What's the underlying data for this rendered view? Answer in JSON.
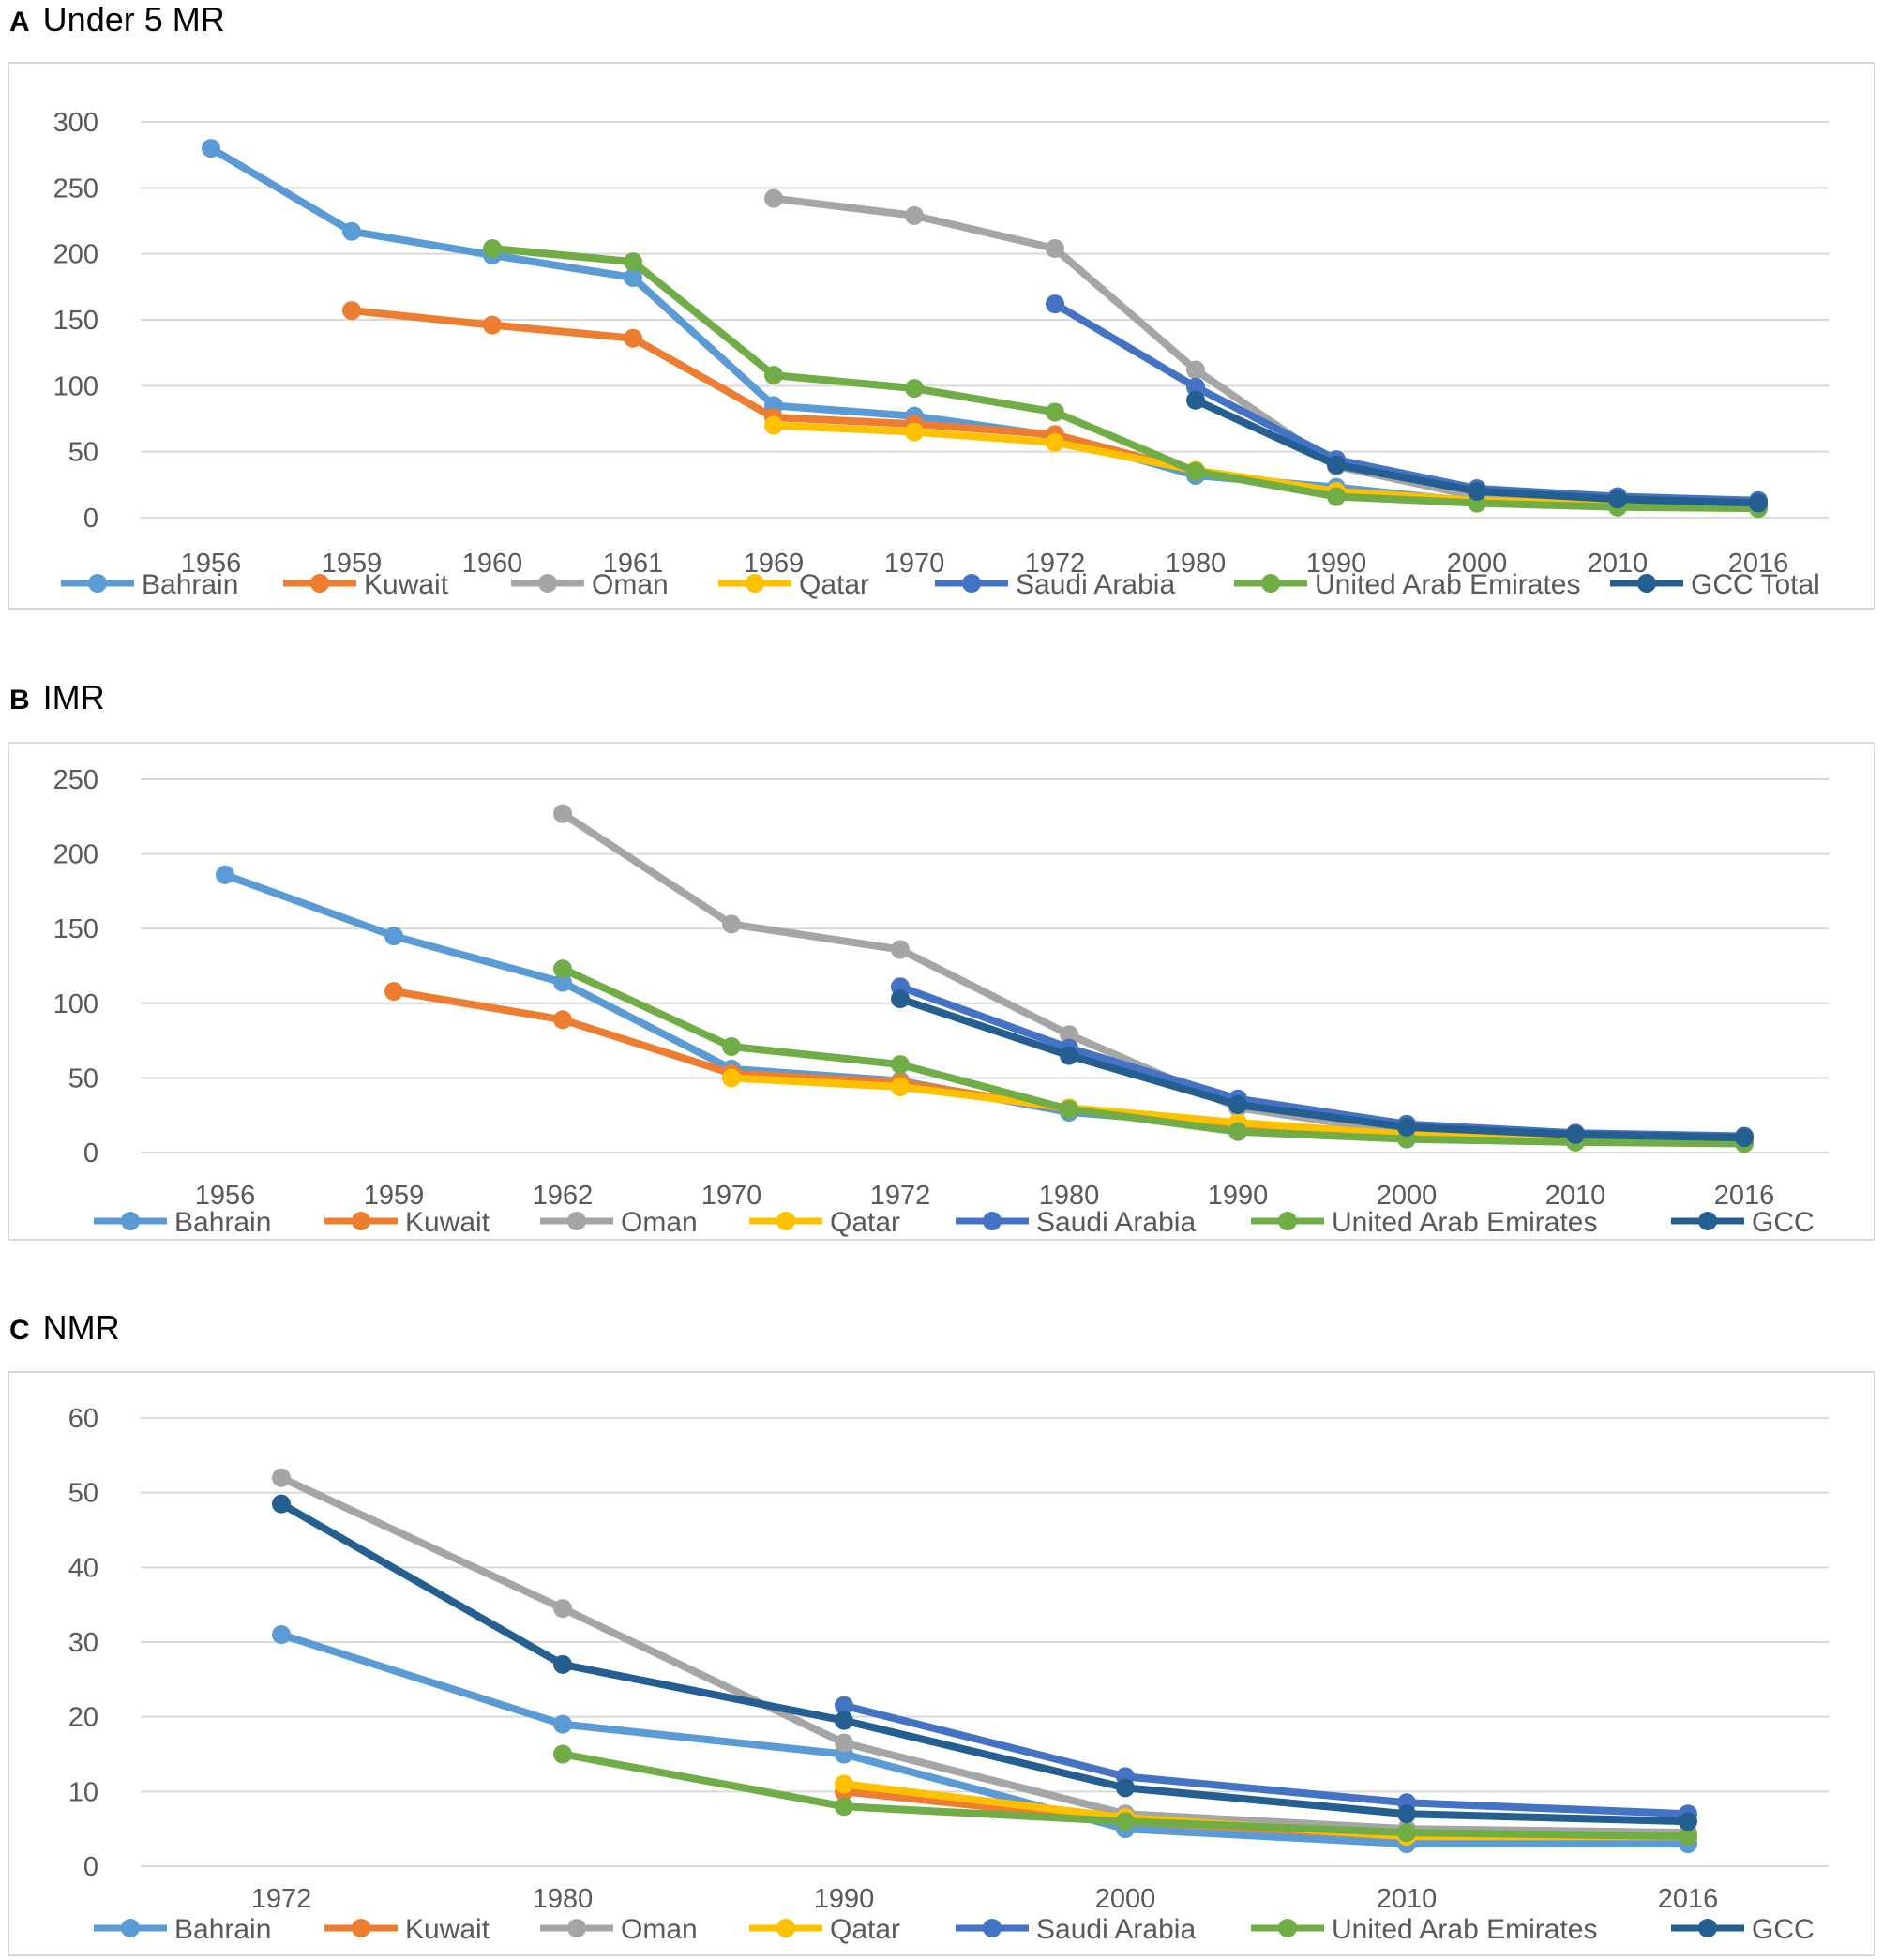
{
  "chart_data": [
    {
      "type": "line",
      "panel_letter": "A",
      "title": "Under 5 MR",
      "categories": [
        "1956",
        "1959",
        "1960",
        "1961",
        "1969",
        "1970",
        "1972",
        "1980",
        "1990",
        "2000",
        "2010",
        "2016"
      ],
      "ylim": [
        0,
        300
      ],
      "yticks": [
        0,
        50,
        100,
        150,
        200,
        250,
        300
      ],
      "grid": true,
      "legend": "bottom",
      "series": [
        {
          "name": "Bahrain",
          "color": "#5b9bd5",
          "values": [
            280,
            217,
            199,
            182,
            85,
            77,
            62,
            32,
            23,
            12,
            10,
            8
          ]
        },
        {
          "name": "Kuwait",
          "color": "#ed7d31",
          "values": [
            null,
            157,
            146,
            136,
            76,
            71,
            63,
            35,
            18,
            13,
            10,
            9
          ]
        },
        {
          "name": "Oman",
          "color": "#a5a5a5",
          "values": [
            null,
            null,
            null,
            null,
            242,
            229,
            204,
            112,
            39,
            16,
            12,
            11
          ]
        },
        {
          "name": "Qatar",
          "color": "#ffc000",
          "values": [
            null,
            null,
            null,
            null,
            70,
            65,
            57,
            36,
            20,
            13,
            10,
            9
          ]
        },
        {
          "name": "Saudi Arabia",
          "color": "#4472c4",
          "values": [
            null,
            null,
            null,
            null,
            null,
            null,
            162,
            99,
            44,
            22,
            16,
            13
          ]
        },
        {
          "name": "United Arab Emirates",
          "color": "#70ad47",
          "values": [
            null,
            null,
            204,
            194,
            108,
            98,
            80,
            35,
            16,
            11,
            8,
            7
          ]
        },
        {
          "name": "GCC Total",
          "color": "#255e91",
          "values": [
            null,
            null,
            null,
            null,
            null,
            null,
            null,
            89,
            40,
            20,
            14,
            11
          ]
        }
      ]
    },
    {
      "type": "line",
      "panel_letter": "B",
      "title": "IMR",
      "categories": [
        "1956",
        "1959",
        "1962",
        "1970",
        "1972",
        "1980",
        "1990",
        "2000",
        "2010",
        "2016"
      ],
      "ylim": [
        0,
        250
      ],
      "yticks": [
        0,
        50,
        100,
        150,
        200,
        250
      ],
      "grid": true,
      "legend": "bottom",
      "series": [
        {
          "name": "Bahrain",
          "color": "#5b9bd5",
          "values": [
            186,
            145,
            114,
            56,
            48,
            27,
            18,
            11,
            8,
            7
          ]
        },
        {
          "name": "Kuwait",
          "color": "#ed7d31",
          "values": [
            null,
            108,
            89,
            53,
            47,
            29,
            16,
            11,
            8,
            7
          ]
        },
        {
          "name": "Oman",
          "color": "#a5a5a5",
          "values": [
            null,
            null,
            227,
            153,
            136,
            79,
            30,
            13,
            10,
            9
          ]
        },
        {
          "name": "Qatar",
          "color": "#ffc000",
          "values": [
            null,
            null,
            null,
            50,
            44,
            30,
            20,
            12,
            8,
            7
          ]
        },
        {
          "name": "Saudi Arabia",
          "color": "#4472c4",
          "values": [
            null,
            null,
            null,
            null,
            111,
            70,
            36,
            19,
            13,
            11
          ]
        },
        {
          "name": "United Arab Emirates",
          "color": "#70ad47",
          "values": [
            null,
            null,
            123,
            71,
            59,
            29,
            14,
            9,
            7,
            6
          ]
        },
        {
          "name": "GCC",
          "color": "#255e91",
          "values": [
            null,
            null,
            null,
            null,
            103,
            65,
            32,
            17,
            12,
            10
          ]
        }
      ]
    },
    {
      "type": "line",
      "panel_letter": "C",
      "title": "NMR",
      "categories": [
        "1972",
        "1980",
        "1990",
        "2000",
        "2010",
        "2016"
      ],
      "ylim": [
        0,
        60
      ],
      "yticks": [
        0,
        10,
        20,
        30,
        40,
        50,
        60
      ],
      "grid": true,
      "legend": "bottom",
      "series": [
        {
          "name": "Bahrain",
          "color": "#5b9bd5",
          "values": [
            31,
            19,
            15,
            5,
            3,
            3
          ]
        },
        {
          "name": "Kuwait",
          "color": "#ed7d31",
          "values": [
            null,
            null,
            10,
            6,
            4,
            4
          ]
        },
        {
          "name": "Oman",
          "color": "#a5a5a5",
          "values": [
            52,
            34.5,
            16.5,
            7,
            5,
            4.5
          ]
        },
        {
          "name": "Qatar",
          "color": "#ffc000",
          "values": [
            null,
            null,
            11,
            6.5,
            4,
            4
          ]
        },
        {
          "name": "Saudi Arabia",
          "color": "#4472c4",
          "values": [
            null,
            null,
            21.5,
            12,
            8.5,
            7
          ]
        },
        {
          "name": "United Arab Emirates",
          "color": "#70ad47",
          "values": [
            null,
            15,
            8,
            6,
            4.5,
            4
          ]
        },
        {
          "name": "GCC",
          "color": "#255e91",
          "values": [
            48.5,
            27,
            19.5,
            10.5,
            7,
            6
          ]
        }
      ]
    }
  ]
}
